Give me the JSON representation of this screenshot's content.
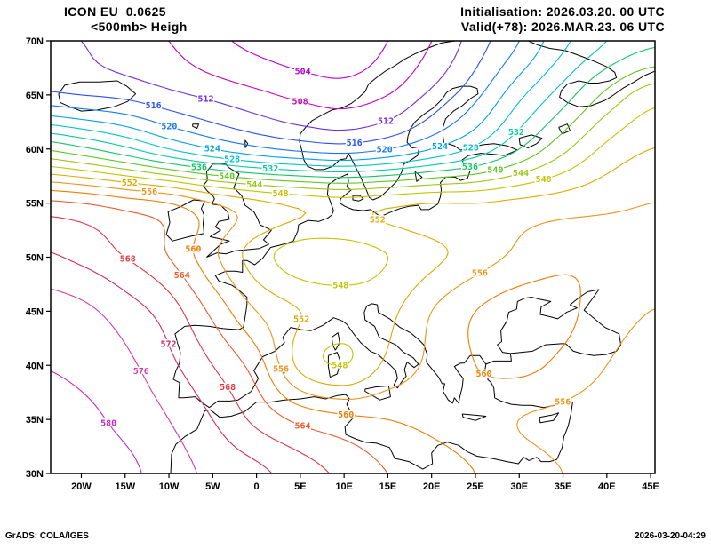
{
  "header": {
    "model": "ICON EU  0.0625",
    "field": "<500mb> Heigh",
    "init": "Initialisation: 2026.03.20. 00 UTC",
    "valid": "Valid(+78): 2026.MAR.23. 06 UTC"
  },
  "footer": {
    "left": "GrADS: COLA/IGES",
    "right": "2026-03-20-04:29"
  },
  "axes": {
    "x_ticks": [
      {
        "value": -20,
        "label": "20W"
      },
      {
        "value": -15,
        "label": "15W"
      },
      {
        "value": -10,
        "label": "10W"
      },
      {
        "value": -5,
        "label": "5W"
      },
      {
        "value": 0,
        "label": "0"
      },
      {
        "value": 5,
        "label": "5E"
      },
      {
        "value": 10,
        "label": "10E"
      },
      {
        "value": 15,
        "label": "15E"
      },
      {
        "value": 20,
        "label": "20E"
      },
      {
        "value": 25,
        "label": "25E"
      },
      {
        "value": 30,
        "label": "30E"
      },
      {
        "value": 35,
        "label": "35E"
      },
      {
        "value": 40,
        "label": "40E"
      },
      {
        "value": 45,
        "label": "45E"
      }
    ],
    "y_ticks": [
      {
        "value": 30,
        "label": "30N"
      },
      {
        "value": 35,
        "label": "35N"
      },
      {
        "value": 40,
        "label": "40N"
      },
      {
        "value": 45,
        "label": "45N"
      },
      {
        "value": 50,
        "label": "50N"
      },
      {
        "value": 55,
        "label": "55N"
      },
      {
        "value": 60,
        "label": "60N"
      },
      {
        "value": 65,
        "label": "65N"
      },
      {
        "value": 70,
        "label": "70N"
      }
    ]
  },
  "chart_data": {
    "type": "contour",
    "title": "<500mb> Heigh",
    "units": "dam",
    "contour_interval": 4,
    "lon_range": [
      -23.5,
      45.5
    ],
    "lat_range": [
      30,
      70
    ],
    "levels": [
      504,
      508,
      512,
      516,
      520,
      524,
      528,
      532,
      536,
      540,
      544,
      548,
      552,
      556,
      560,
      564,
      568,
      572,
      576,
      580
    ],
    "level_colors": [
      "#b800d8",
      "#cc00b0",
      "#6a30e8",
      "#2a50f0",
      "#1478f0",
      "#00a2e8",
      "#00c4cc",
      "#00cca4",
      "#14c662",
      "#5ec81e",
      "#9cc614",
      "#c2c400",
      "#dcaa00",
      "#ee9418",
      "#f07c00",
      "#ee5a2a",
      "#e43640",
      "#d42a62",
      "#dc3c9a",
      "#c628c6"
    ],
    "grid": {
      "lons": [
        -25,
        -20,
        -15,
        -10,
        -5,
        0,
        5,
        10,
        15,
        20,
        25,
        30,
        35,
        40,
        45
      ],
      "lats": [
        70,
        65,
        60,
        55,
        50,
        45,
        40,
        35,
        30
      ],
      "values": [
        [
          513,
          512,
          510,
          508,
          505,
          503,
          502,
          502,
          504,
          508,
          514,
          520,
          527,
          532,
          535
        ],
        [
          517,
          516,
          515,
          513,
          511,
          509,
          507,
          506,
          508,
          513,
          519,
          527,
          534,
          541,
          546
        ],
        [
          540,
          537,
          533,
          528,
          524,
          521,
          519,
          518,
          520,
          524,
          529,
          536,
          543,
          549,
          552
        ],
        [
          565,
          564,
          562,
          560,
          556,
          553,
          551,
          550,
          551,
          552,
          552,
          553,
          554,
          555,
          556
        ],
        [
          573,
          571,
          568,
          564,
          557,
          550,
          546,
          546,
          548,
          551,
          554,
          557,
          559,
          559,
          558
        ],
        [
          578,
          577,
          574,
          570,
          563,
          556,
          552,
          550,
          551,
          556,
          560,
          562,
          561,
          558,
          556
        ],
        [
          580,
          579,
          577,
          573,
          568,
          562,
          551,
          548,
          553,
          557,
          560,
          561,
          559,
          556,
          554
        ],
        [
          582,
          581,
          579,
          576,
          572,
          567,
          563,
          561,
          560,
          559,
          558,
          556,
          555,
          554,
          553
        ],
        [
          583,
          582,
          581,
          578,
          575,
          573,
          570,
          567,
          564,
          562,
          560,
          558,
          556,
          555,
          554
        ]
      ]
    }
  }
}
